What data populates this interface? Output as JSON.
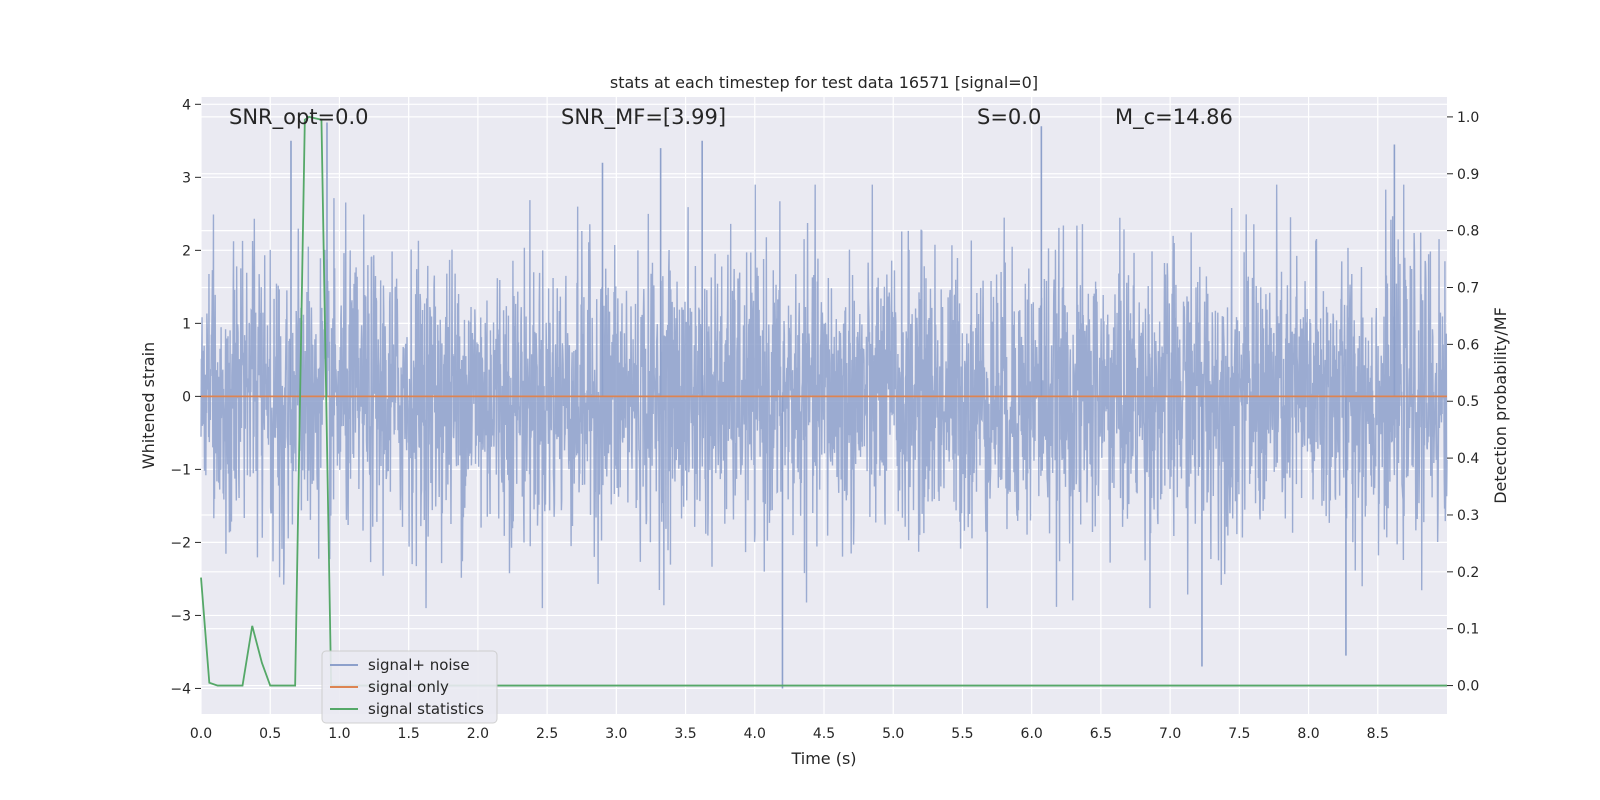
{
  "chart_data": {
    "type": "line",
    "title": "stats at each timestep for test data 16571 [signal=0]",
    "xlabel": "Time (s)",
    "ylabel": "Whitened strain",
    "y2label": "Detection probability/MF",
    "xlim": [
      0.0,
      9.0
    ],
    "ylim": [
      -4.35,
      4.1
    ],
    "y2lim": [
      -0.05,
      1.035
    ],
    "xticks": [
      "0.0",
      "0.5",
      "1.0",
      "1.5",
      "2.0",
      "2.5",
      "3.0",
      "3.5",
      "4.0",
      "4.5",
      "5.0",
      "5.5",
      "6.0",
      "6.5",
      "7.0",
      "7.5",
      "8.0",
      "8.5"
    ],
    "yticks": [
      "4",
      "3",
      "2",
      "1",
      "0",
      "−1",
      "−2",
      "−3",
      "−4"
    ],
    "y2ticks": [
      "1.0",
      "0.9",
      "0.8",
      "0.7",
      "0.6",
      "0.5",
      "0.4",
      "0.3",
      "0.2",
      "0.1",
      "0.0"
    ],
    "grid": true,
    "legend_position": "lower-left",
    "annotations": [
      {
        "id": "snr-opt",
        "text": "SNR_opt=0.0"
      },
      {
        "id": "snr-mf",
        "text": "SNR_MF=[3.99]"
      },
      {
        "id": "s-stat",
        "text": "S=0.0"
      },
      {
        "id": "chirp-mass",
        "text": "M_c=14.86"
      }
    ],
    "series": [
      {
        "name": "signal+ noise",
        "axis": "left",
        "color": "#8da0cb",
        "description_values": "whitened noise, amplitude mostly within ±2.5, peaks near ±3.7",
        "spikes": [
          {
            "x": 0.65,
            "y": 3.5
          },
          {
            "x": 0.91,
            "y": 3.75
          },
          {
            "x": 2.9,
            "y": 3.2
          },
          {
            "x": 3.32,
            "y": 3.4
          },
          {
            "x": 3.62,
            "y": 3.5
          },
          {
            "x": 6.07,
            "y": 3.7
          },
          {
            "x": 8.62,
            "y": 3.45
          },
          {
            "x": 4.2,
            "y": -4.0
          },
          {
            "x": 7.23,
            "y": -3.7
          },
          {
            "x": 8.27,
            "y": -3.55
          }
        ]
      },
      {
        "name": "signal only",
        "axis": "left",
        "color": "#dd8452",
        "x": [
          0.0,
          9.0
        ],
        "y": [
          0.0,
          0.0
        ]
      },
      {
        "name": "signal statistics",
        "axis": "right",
        "color": "#55a868",
        "x": [
          0.0,
          0.06,
          0.12,
          0.3,
          0.37,
          0.44,
          0.5,
          0.68,
          0.75,
          0.78,
          0.87,
          0.94,
          1.2,
          9.0
        ],
        "y": [
          0.19,
          0.005,
          0.0,
          0.0,
          0.105,
          0.04,
          0.0,
          0.0,
          0.995,
          1.0,
          0.995,
          0.0,
          0.0,
          0.0
        ]
      }
    ]
  }
}
